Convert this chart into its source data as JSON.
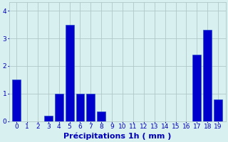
{
  "values": [
    1.5,
    0,
    0,
    0.2,
    1.0,
    3.5,
    1.0,
    1.0,
    0.35,
    0,
    0,
    0,
    0,
    0,
    0,
    0,
    0,
    2.4,
    3.3,
    0.8
  ],
  "bar_color": "#0000cc",
  "bar_edge_color": "#1a44cc",
  "background_color": "#d8f0f0",
  "grid_color": "#b0c8c8",
  "text_color": "#0000bb",
  "xlabel": "Précipitations 1h ( mm )",
  "ylim": [
    0,
    4.3
  ],
  "yticks": [
    0,
    1,
    2,
    3,
    4
  ],
  "xlabel_fontsize": 8,
  "tick_fontsize": 6.5,
  "n_bars": 20
}
